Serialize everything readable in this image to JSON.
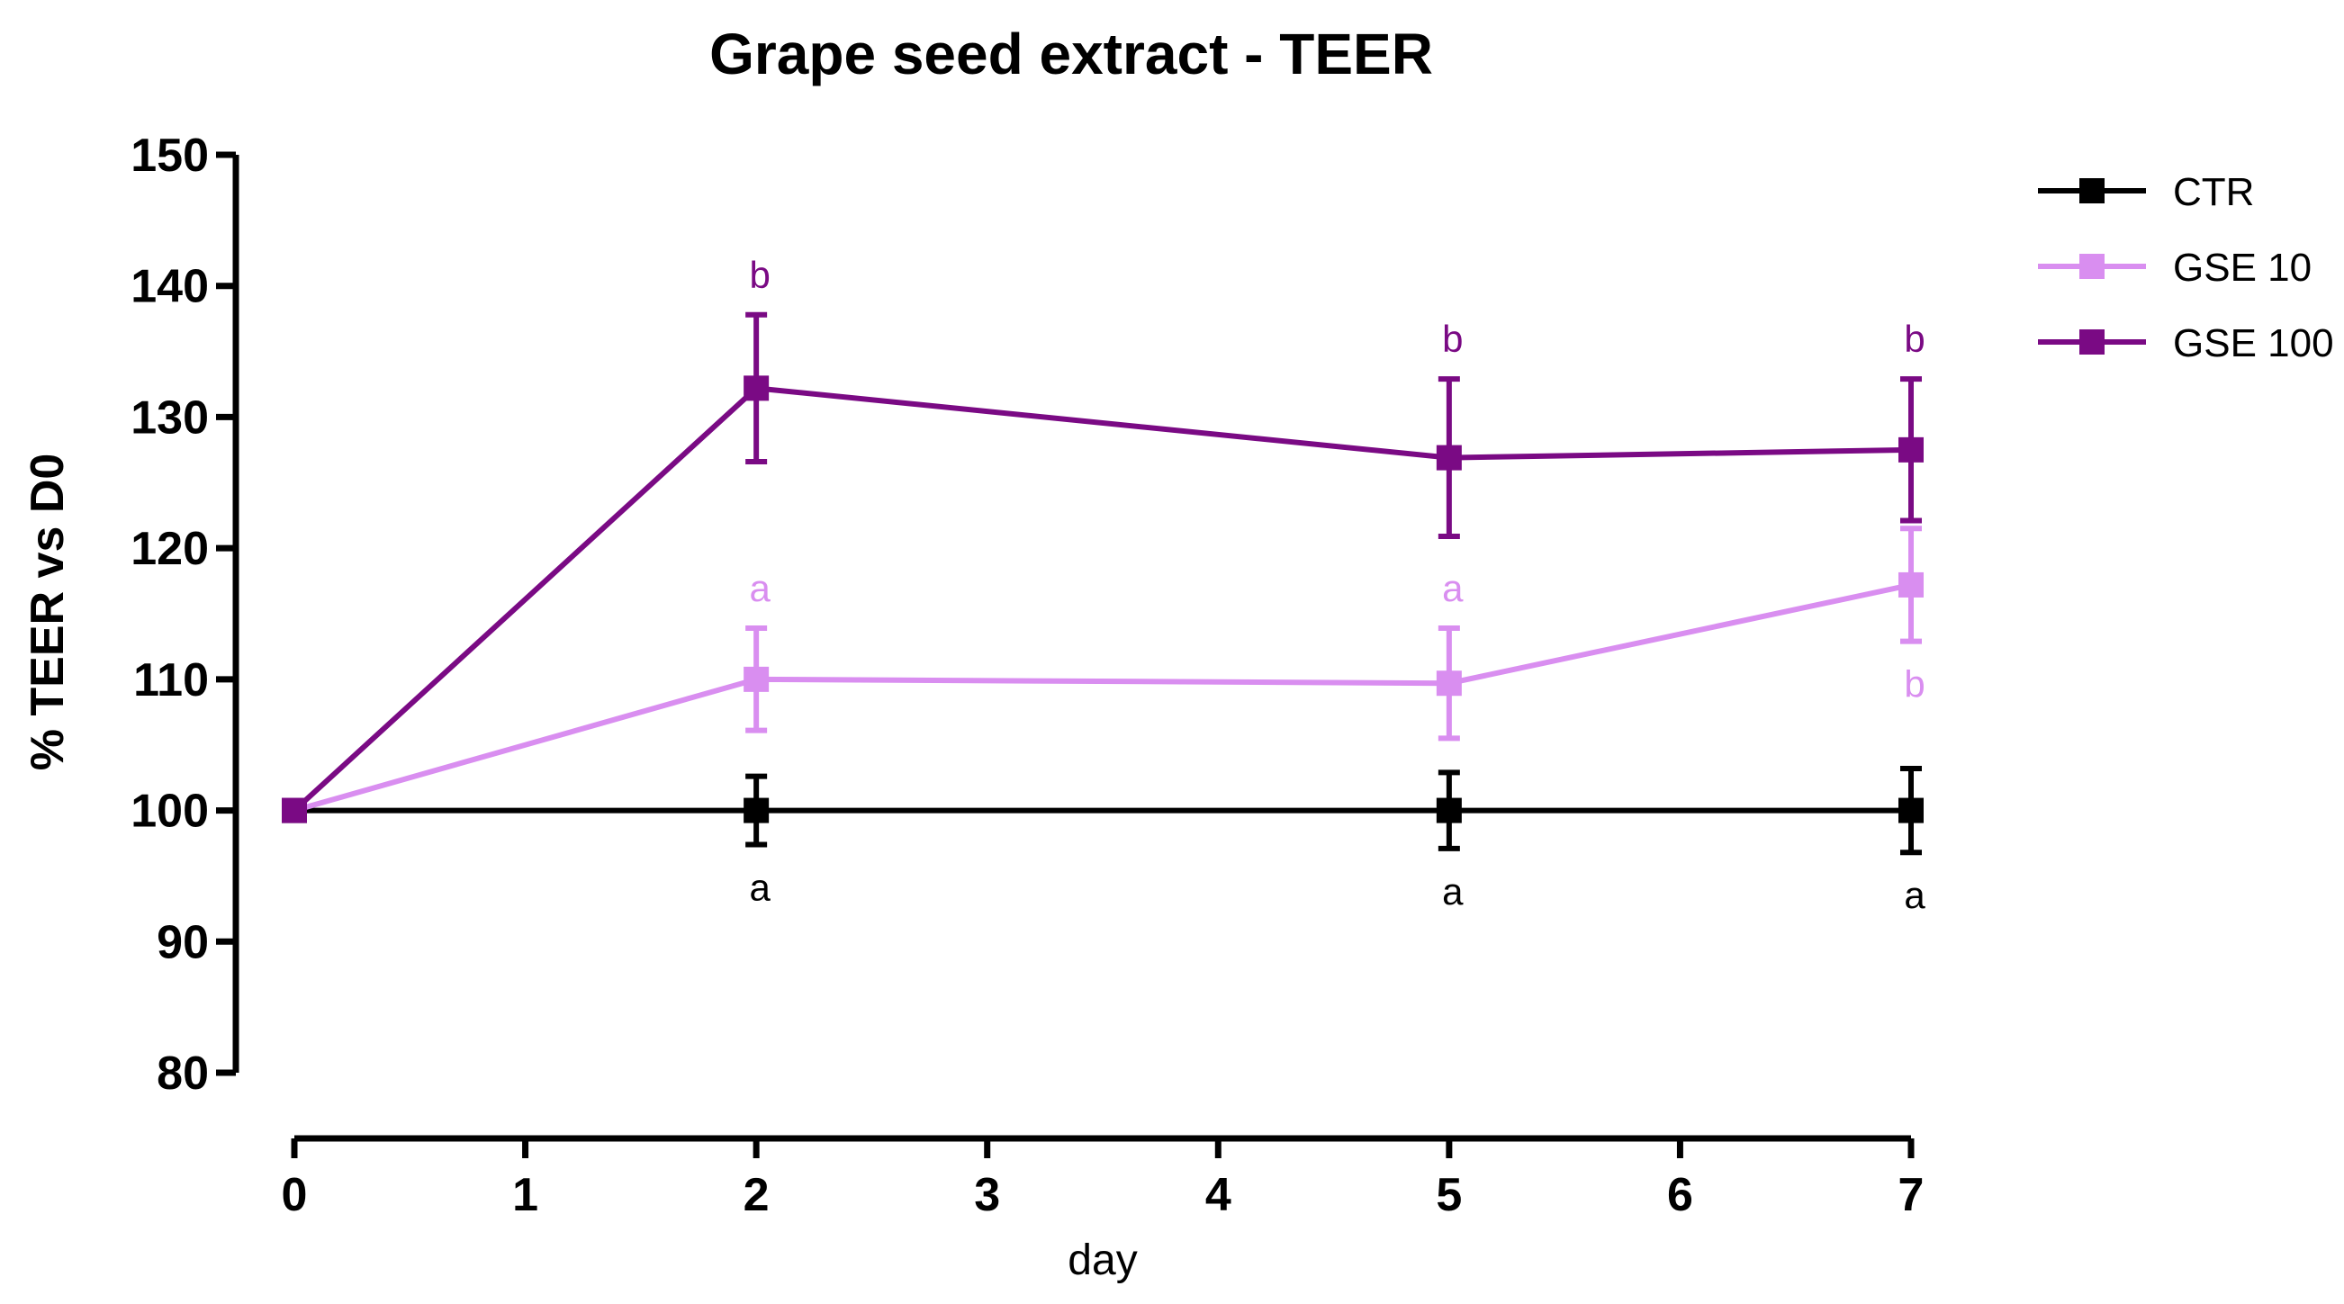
{
  "chart_data": {
    "type": "line",
    "title": "Grape seed extract - TEER",
    "xlabel": "day",
    "ylabel": "% TEER vs D0",
    "xlim": [
      0,
      7
    ],
    "ylim": [
      80,
      150
    ],
    "xticks": [
      0,
      1,
      2,
      3,
      4,
      5,
      6,
      7
    ],
    "yticks": [
      80,
      90,
      100,
      110,
      120,
      130,
      140,
      150
    ],
    "x": [
      0,
      2,
      5,
      7
    ],
    "legend_position": "top-right",
    "series": [
      {
        "name": "CTR",
        "color": "#000000",
        "values": [
          100,
          100,
          100,
          100
        ],
        "errors": [
          0,
          2.6,
          2.9,
          3.2
        ],
        "labels": [
          "",
          "a",
          "a",
          "a"
        ],
        "label_side": [
          "",
          "below",
          "below",
          "below"
        ]
      },
      {
        "name": "GSE 10",
        "color": "#d98ef0",
        "values": [
          100,
          110,
          109.7,
          117.2
        ],
        "errors": [
          0,
          3.9,
          4.2,
          4.3
        ],
        "labels": [
          "",
          "a",
          "a",
          "b"
        ],
        "label_side": [
          "",
          "above",
          "above",
          "below"
        ]
      },
      {
        "name": "GSE 100",
        "color": "#7a0a84",
        "values": [
          100,
          132.2,
          126.9,
          127.5
        ],
        "errors": [
          0,
          5.6,
          6.0,
          5.4
        ],
        "labels": [
          "",
          "b",
          "b",
          "b"
        ],
        "label_side": [
          "",
          "above",
          "above",
          "above"
        ]
      }
    ]
  }
}
